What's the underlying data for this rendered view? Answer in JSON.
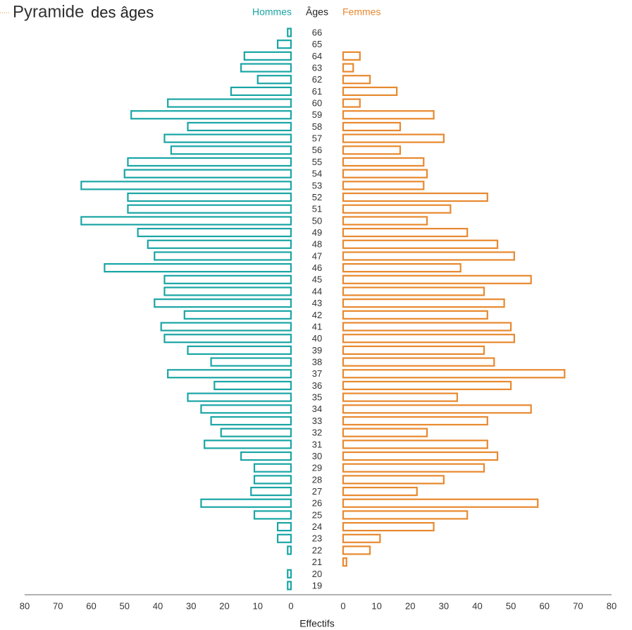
{
  "chart_data": {
    "type": "pyramid",
    "title_highlight": "Pyramide",
    "title_rest": "des âges",
    "category_header": "Âges",
    "x_label": "Effectifs",
    "categories": [
      19,
      20,
      21,
      22,
      23,
      24,
      25,
      26,
      27,
      28,
      29,
      30,
      31,
      32,
      33,
      34,
      35,
      36,
      37,
      38,
      39,
      40,
      41,
      42,
      43,
      44,
      45,
      46,
      47,
      48,
      49,
      50,
      51,
      52,
      53,
      54,
      55,
      56,
      57,
      58,
      59,
      60,
      61,
      62,
      63,
      64,
      65,
      66
    ],
    "series": [
      {
        "name": "Hommes",
        "color": "#1ba5a5",
        "side": "left",
        "values": [
          1,
          1,
          0,
          1,
          4,
          4,
          11,
          27,
          12,
          11,
          11,
          15,
          26,
          21,
          24,
          27,
          31,
          23,
          37,
          24,
          31,
          38,
          39,
          32,
          41,
          38,
          38,
          56,
          41,
          43,
          46,
          63,
          49,
          49,
          63,
          50,
          49,
          36,
          38,
          31,
          48,
          37,
          18,
          10,
          15,
          14,
          4,
          1
        ]
      },
      {
        "name": "Femmes",
        "color": "#e8892f",
        "side": "right",
        "values": [
          0,
          0,
          1,
          8,
          11,
          27,
          37,
          58,
          22,
          30,
          42,
          46,
          43,
          25,
          43,
          56,
          34,
          50,
          66,
          45,
          42,
          51,
          50,
          43,
          48,
          42,
          56,
          35,
          51,
          46,
          37,
          25,
          32,
          43,
          24,
          25,
          24,
          17,
          30,
          17,
          27,
          5,
          16,
          8,
          3,
          5,
          0,
          0
        ]
      }
    ],
    "xlim": [
      0,
      80
    ],
    "xticks": [
      0,
      10,
      20,
      30,
      40,
      50,
      60,
      70,
      80
    ]
  }
}
